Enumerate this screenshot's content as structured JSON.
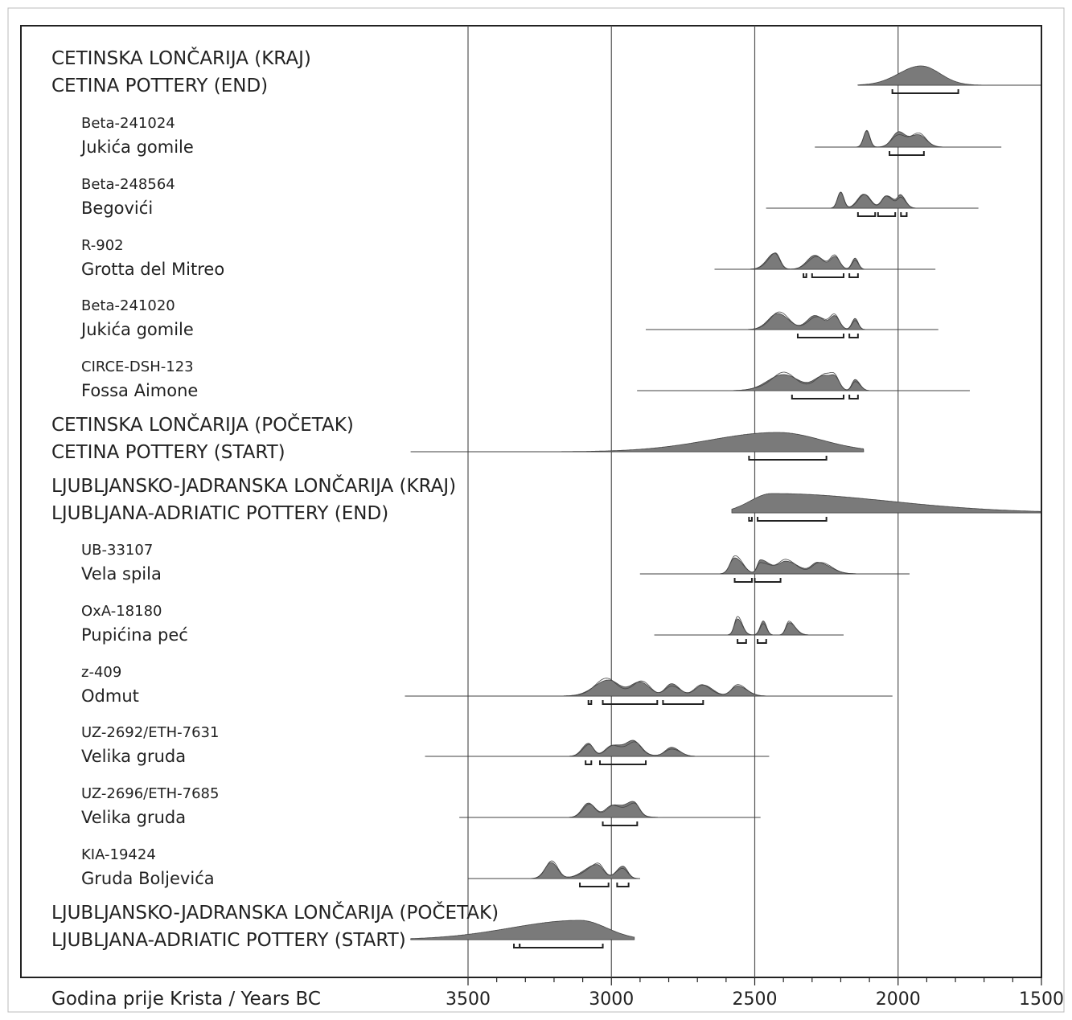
{
  "chart_data": {
    "type": "oxcal-multiplot",
    "xlabel": "Godina prije Krista / Years BC",
    "xlim": [
      3700,
      1500
    ],
    "x_ticks": [
      3500,
      3000,
      2500,
      2000,
      1500
    ],
    "grid": true,
    "colors": {
      "fill": "#7a7a7a",
      "stroke": "#444444",
      "line": "#333333",
      "grid": "#555555"
    },
    "rows": [
      {
        "kind": "phase",
        "line1": "CETINSKA LONČARIJA (KRAJ)",
        "line2": "CETINA POTTERY (END)",
        "range": [
          2140,
          1500
        ],
        "peaks": [
          [
            1920,
            2060,
            1800
          ]
        ],
        "brackets": [
          [
            2020,
            1790
          ]
        ]
      },
      {
        "kind": "sample",
        "code": "Beta-241024",
        "site": "Jukića gomile",
        "range": [
          2290,
          1640
        ],
        "peaks": [
          [
            2110,
            2130,
            2090
          ],
          [
            2000,
            2040,
            1960
          ],
          [
            1930,
            1990,
            1880
          ]
        ],
        "brackets": [
          [
            2030,
            1910
          ]
        ]
      },
      {
        "kind": "sample",
        "code": "Beta-248564",
        "site": "Begovići",
        "range": [
          2460,
          1720
        ],
        "peaks": [
          [
            2200,
            2220,
            2180
          ],
          [
            2120,
            2160,
            2080
          ],
          [
            2040,
            2070,
            1990
          ],
          [
            1990,
            2010,
            1960
          ]
        ],
        "brackets": [
          [
            2140,
            2080
          ],
          [
            2070,
            2010
          ],
          [
            1990,
            1970
          ]
        ]
      },
      {
        "kind": "sample",
        "code": "R-902",
        "site": "Grotta del Mitreo",
        "range": [
          2640,
          1870
        ],
        "peaks": [
          [
            2430,
            2480,
            2400
          ],
          [
            2290,
            2340,
            2240
          ],
          [
            2220,
            2250,
            2190
          ],
          [
            2150,
            2170,
            2130
          ]
        ],
        "brackets": [
          [
            2330,
            2320
          ],
          [
            2300,
            2190
          ],
          [
            2170,
            2140
          ]
        ]
      },
      {
        "kind": "sample",
        "code": "Beta-241020",
        "site": "Jukića gomile",
        "range": [
          2880,
          1860
        ],
        "peaks": [
          [
            2420,
            2480,
            2350
          ],
          [
            2290,
            2340,
            2230
          ],
          [
            2220,
            2250,
            2190
          ],
          [
            2150,
            2170,
            2130
          ]
        ],
        "brackets": [
          [
            2350,
            2190
          ],
          [
            2170,
            2140
          ]
        ]
      },
      {
        "kind": "sample",
        "code": "CIRCE-DSH-123",
        "site": "Fossa Aimone",
        "range": [
          2910,
          1750
        ],
        "peaks": [
          [
            2400,
            2500,
            2300
          ],
          [
            2260,
            2320,
            2220
          ],
          [
            2220,
            2250,
            2190
          ],
          [
            2150,
            2170,
            2120
          ]
        ],
        "brackets": [
          [
            2370,
            2190
          ],
          [
            2170,
            2140
          ]
        ]
      },
      {
        "kind": "phase",
        "line1": "CETINSKA LONČARIJA (POČETAK)",
        "line2": "CETINA POTTERY (START)",
        "range": [
          3700,
          2120
        ],
        "peaks": [
          [
            2420,
            2850,
            2140
          ]
        ],
        "brackets": [
          [
            2520,
            2250
          ]
        ]
      },
      {
        "kind": "phase",
        "line1": "LJUBLJANSKO-JADRANSKA LONČARIJA (KRAJ)",
        "line2": "LJUBLJANA-ADRIATIC POTTERY (END)",
        "range": [
          2580,
          1500
        ],
        "peaks": [
          [
            2440,
            2580,
            1700
          ]
        ],
        "brackets": [
          [
            2520,
            2510
          ],
          [
            2490,
            2250
          ]
        ]
      },
      {
        "kind": "sample",
        "code": "UB-33107",
        "site": "Vela spila",
        "range": [
          2900,
          1960
        ],
        "peaks": [
          [
            2570,
            2600,
            2520
          ],
          [
            2480,
            2500,
            2420
          ],
          [
            2390,
            2440,
            2310
          ],
          [
            2280,
            2320,
            2200
          ]
        ],
        "brackets": [
          [
            2570,
            2510
          ],
          [
            2500,
            2410
          ]
        ]
      },
      {
        "kind": "sample",
        "code": "OxA-18180",
        "site": "Pupićina peć",
        "range": [
          2850,
          2190
        ],
        "peaks": [
          [
            2560,
            2580,
            2530
          ],
          [
            2470,
            2490,
            2450
          ],
          [
            2380,
            2400,
            2340
          ]
        ],
        "brackets": [
          [
            2560,
            2530
          ],
          [
            2490,
            2460
          ]
        ]
      },
      {
        "kind": "sample",
        "code": "z-409",
        "site": "Odmut",
        "range": [
          3720,
          2020
        ],
        "peaks": [
          [
            3010,
            3100,
            2940
          ],
          [
            2900,
            2960,
            2840
          ],
          [
            2790,
            2830,
            2740
          ],
          [
            2680,
            2730,
            2620
          ],
          [
            2560,
            2600,
            2500
          ]
        ],
        "brackets": [
          [
            3080,
            3070
          ],
          [
            3030,
            2840
          ],
          [
            2820,
            2680
          ]
        ]
      },
      {
        "kind": "sample",
        "code": "UZ-2692/ETH-7631",
        "site": "Velika gruda",
        "range": [
          3650,
          2450
        ],
        "peaks": [
          [
            3080,
            3120,
            3050
          ],
          [
            2990,
            3040,
            2880
          ],
          [
            2920,
            2960,
            2880
          ],
          [
            2790,
            2830,
            2740
          ]
        ],
        "brackets": [
          [
            3090,
            3070
          ],
          [
            3040,
            2880
          ]
        ]
      },
      {
        "kind": "sample",
        "code": "UZ-2696/ETH-7685",
        "site": "Velika gruda",
        "range": [
          3530,
          2480
        ],
        "peaks": [
          [
            3080,
            3120,
            3040
          ],
          [
            2990,
            3040,
            2900
          ],
          [
            2920,
            2960,
            2890
          ]
        ],
        "brackets": [
          [
            3030,
            2910
          ]
        ]
      },
      {
        "kind": "sample",
        "code": "KIA-19424",
        "site": "Gruda Boljevića",
        "range": [
          3500,
          2900
        ],
        "peaks": [
          [
            3210,
            3250,
            3170
          ],
          [
            3050,
            3130,
            3010
          ],
          [
            2960,
            3000,
            2930
          ]
        ],
        "brackets": [
          [
            3110,
            3010
          ],
          [
            2980,
            2940
          ]
        ]
      },
      {
        "kind": "phase",
        "line1": "LJUBLJANSKO-JADRANSKA LONČARIJA (POČETAK)",
        "line2": "LJUBLJANA-ADRIATIC POTTERY (START)",
        "range": [
          3700,
          2920
        ],
        "peaks": [
          [
            3110,
            3550,
            2940
          ]
        ],
        "brackets": [
          [
            3340,
            3320
          ],
          [
            3320,
            3030
          ]
        ]
      }
    ]
  }
}
